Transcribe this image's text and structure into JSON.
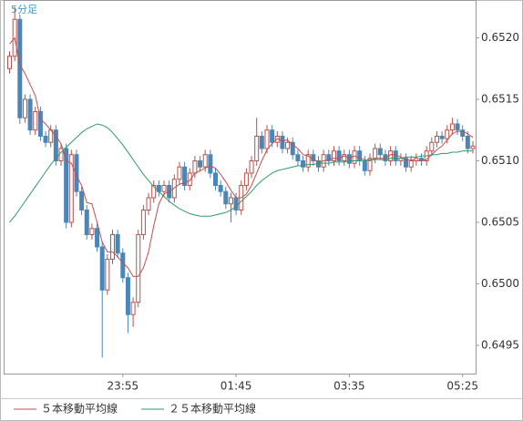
{
  "chart_data": {
    "type": "candlestick",
    "title": "5分足",
    "categories": [
      null,
      null,
      null,
      null,
      null,
      null,
      null,
      null,
      null,
      null,
      null,
      null,
      null,
      null,
      null,
      null,
      null,
      null,
      null,
      null,
      null,
      null,
      "23:55",
      null,
      null,
      null,
      null,
      null,
      null,
      null,
      null,
      null,
      null,
      null,
      null,
      null,
      null,
      null,
      null,
      null,
      null,
      null,
      null,
      null,
      "01:45",
      null,
      null,
      null,
      null,
      null,
      null,
      null,
      null,
      null,
      null,
      null,
      null,
      null,
      null,
      null,
      null,
      null,
      null,
      null,
      null,
      null,
      "03:35",
      null,
      null,
      null,
      null,
      null,
      null,
      null,
      null,
      null,
      null,
      null,
      null,
      null,
      null,
      null,
      null,
      null,
      null,
      null,
      null,
      null,
      "05:25",
      null,
      null
    ],
    "open": [
      0.65175,
      0.65185,
      0.65215,
      0.65135,
      0.6515,
      0.65125,
      0.6514,
      0.6512,
      0.65115,
      0.65125,
      0.651,
      0.6511,
      0.6505,
      0.65105,
      0.65075,
      0.6506,
      0.6504,
      0.65045,
      0.6503,
      0.64995,
      0.6502,
      0.6504,
      0.65025,
      0.65005,
      0.64975,
      0.64985,
      0.6504,
      0.6506,
      0.6507,
      0.6508,
      0.65075,
      0.6508,
      0.6507,
      0.65085,
      0.65095,
      0.6508,
      0.6509,
      0.651,
      0.65095,
      0.65105,
      0.6509,
      0.6508,
      0.65075,
      0.65065,
      0.6507,
      0.6506,
      0.6508,
      0.6509,
      0.651,
      0.6512,
      0.6511,
      0.65125,
      0.65115,
      0.6512,
      0.6511,
      0.65115,
      0.65105,
      0.651,
      0.65095,
      0.65105,
      0.651,
      0.65095,
      0.65105,
      0.651,
      0.65108,
      0.651,
      0.65105,
      0.65098,
      0.65108,
      0.651,
      0.65092,
      0.65102,
      0.6511,
      0.65105,
      0.651,
      0.65108,
      0.651,
      0.65102,
      0.65095,
      0.651,
      0.65102,
      0.651,
      0.65108,
      0.65115,
      0.6512,
      0.65118,
      0.65125,
      0.6513,
      0.65125,
      0.6512,
      0.6511
    ],
    "high": [
      0.65189,
      0.65225,
      0.65219,
      0.65154,
      0.65154,
      0.65144,
      0.65144,
      0.65124,
      0.65129,
      0.65129,
      0.65114,
      0.65114,
      0.65109,
      0.65109,
      0.65079,
      0.65064,
      0.65049,
      0.65049,
      0.65034,
      0.65024,
      0.65044,
      0.65044,
      0.65029,
      0.65009,
      0.64989,
      0.65044,
      0.65064,
      0.65074,
      0.65084,
      0.65084,
      0.65084,
      0.65084,
      0.65089,
      0.65099,
      0.65099,
      0.65094,
      0.65104,
      0.65104,
      0.65109,
      0.65109,
      0.65094,
      0.65084,
      0.65079,
      0.65074,
      0.65074,
      0.65084,
      0.65094,
      0.65104,
      0.65135,
      0.65124,
      0.65129,
      0.65129,
      0.65124,
      0.65124,
      0.65119,
      0.65119,
      0.65109,
      0.65104,
      0.65109,
      0.65109,
      0.65104,
      0.65109,
      0.65109,
      0.65112,
      0.65112,
      0.65109,
      0.65109,
      0.65112,
      0.65112,
      0.65104,
      0.65106,
      0.65114,
      0.65114,
      0.65109,
      0.65112,
      0.65112,
      0.65106,
      0.65106,
      0.65104,
      0.65106,
      0.65106,
      0.65112,
      0.65119,
      0.65124,
      0.65124,
      0.65129,
      0.65135,
      0.65134,
      0.65129,
      0.65124,
      0.65116
    ],
    "low": [
      0.65171,
      0.65181,
      0.6513,
      0.65131,
      0.65121,
      0.65121,
      0.65116,
      0.65111,
      0.65111,
      0.65096,
      0.65096,
      0.65045,
      0.65046,
      0.65071,
      0.65056,
      0.65036,
      0.65036,
      0.65026,
      0.6494,
      0.64991,
      0.65016,
      0.65021,
      0.65001,
      0.6496,
      0.64965,
      0.64981,
      0.65036,
      0.65056,
      0.65066,
      0.65071,
      0.65071,
      0.65066,
      0.65066,
      0.65081,
      0.65076,
      0.65076,
      0.65086,
      0.65091,
      0.65091,
      0.65086,
      0.65076,
      0.65071,
      0.65061,
      0.6505,
      0.65056,
      0.65056,
      0.65076,
      0.65086,
      0.65096,
      0.65106,
      0.65106,
      0.65111,
      0.65111,
      0.65106,
      0.65106,
      0.65101,
      0.65096,
      0.65091,
      0.65091,
      0.65096,
      0.65091,
      0.65091,
      0.65096,
      0.65096,
      0.65096,
      0.65096,
      0.65094,
      0.65094,
      0.65096,
      0.65088,
      0.65088,
      0.65098,
      0.65101,
      0.65096,
      0.65096,
      0.65096,
      0.65096,
      0.65091,
      0.65091,
      0.65096,
      0.65096,
      0.65096,
      0.65104,
      0.65111,
      0.65114,
      0.65114,
      0.65121,
      0.65121,
      0.65116,
      0.65106,
      0.65106
    ],
    "close": [
      0.65185,
      0.65215,
      0.65135,
      0.6515,
      0.65125,
      0.6514,
      0.6512,
      0.65115,
      0.65125,
      0.651,
      0.6511,
      0.6505,
      0.65105,
      0.65075,
      0.6506,
      0.6504,
      0.65045,
      0.6503,
      0.64995,
      0.6502,
      0.6504,
      0.65025,
      0.65005,
      0.64975,
      0.64985,
      0.6504,
      0.6506,
      0.6507,
      0.6508,
      0.65075,
      0.6508,
      0.6507,
      0.65085,
      0.65095,
      0.6508,
      0.6509,
      0.651,
      0.65095,
      0.65105,
      0.6509,
      0.6508,
      0.65075,
      0.65065,
      0.6507,
      0.6506,
      0.6508,
      0.6509,
      0.651,
      0.6512,
      0.6511,
      0.65125,
      0.65115,
      0.6512,
      0.6511,
      0.65115,
      0.65105,
      0.651,
      0.65095,
      0.65105,
      0.651,
      0.65095,
      0.65105,
      0.651,
      0.65108,
      0.651,
      0.65105,
      0.65098,
      0.65108,
      0.651,
      0.65092,
      0.65102,
      0.6511,
      0.65105,
      0.651,
      0.65108,
      0.651,
      0.65102,
      0.65095,
      0.651,
      0.65102,
      0.651,
      0.65108,
      0.65115,
      0.6512,
      0.65118,
      0.65125,
      0.6513,
      0.65125,
      0.6512,
      0.6511,
      0.65112
    ],
    "up_color": "#b5524d",
    "down_color": "#4a86b8",
    "series": [
      {
        "name": "５本移動平均線",
        "color": "#c0504d",
        "values": [
          0.65195,
          0.652,
          0.65178,
          0.65171,
          0.65162,
          0.65153,
          0.65134,
          0.6513,
          0.65125,
          0.6512,
          0.65114,
          0.651,
          0.65098,
          0.65088,
          0.6508,
          0.65066,
          0.65065,
          0.6505,
          0.65034,
          0.65026,
          0.65026,
          0.65022,
          0.65017,
          0.65013,
          0.65006,
          0.65006,
          0.65013,
          0.65026,
          0.65047,
          0.65065,
          0.65073,
          0.65075,
          0.65078,
          0.65081,
          0.65082,
          0.65084,
          0.6509,
          0.65092,
          0.65094,
          0.65096,
          0.65094,
          0.65089,
          0.65083,
          0.65076,
          0.6507,
          0.6507,
          0.65073,
          0.6508,
          0.6509,
          0.651,
          0.65109,
          0.65114,
          0.65118,
          0.65116,
          0.65117,
          0.65113,
          0.6511,
          0.65105,
          0.65104,
          0.65101,
          0.65099,
          0.651,
          0.65101,
          0.65102,
          0.65102,
          0.65104,
          0.65102,
          0.65104,
          0.65102,
          0.65101,
          0.651,
          0.65102,
          0.65102,
          0.65102,
          0.65105,
          0.65105,
          0.65103,
          0.65101,
          0.65101,
          0.651,
          0.651,
          0.65101,
          0.65105,
          0.65109,
          0.65112,
          0.65117,
          0.65122,
          0.65124,
          0.65124,
          0.65122,
          0.65119
        ]
      },
      {
        "name": "２５本移動平均線",
        "color": "#2e9a6a",
        "values": [
          0.6505,
          0.65055,
          0.65061,
          0.65067,
          0.65073,
          0.65079,
          0.65085,
          0.65091,
          0.65097,
          0.65102,
          0.65107,
          0.65111,
          0.65115,
          0.65119,
          0.65123,
          0.65126,
          0.65128,
          0.6513,
          0.65129,
          0.65127,
          0.65123,
          0.65118,
          0.65113,
          0.65107,
          0.65101,
          0.65095,
          0.65089,
          0.65084,
          0.65079,
          0.65075,
          0.65071,
          0.65067,
          0.65064,
          0.65061,
          0.65059,
          0.65057,
          0.65056,
          0.65055,
          0.65055,
          0.65055,
          0.65056,
          0.65057,
          0.65058,
          0.6506,
          0.65063,
          0.65067,
          0.65071,
          0.65075,
          0.6508,
          0.65084,
          0.65087,
          0.6509,
          0.65092,
          0.65093,
          0.65094,
          0.65095,
          0.65096,
          0.65096,
          0.65097,
          0.65097,
          0.65098,
          0.65098,
          0.65098,
          0.65099,
          0.65099,
          0.65099,
          0.651,
          0.651,
          0.651,
          0.651,
          0.65101,
          0.65101,
          0.65101,
          0.65101,
          0.65102,
          0.65102,
          0.65102,
          0.65103,
          0.65103,
          0.65103,
          0.65104,
          0.65104,
          0.65105,
          0.65105,
          0.65106,
          0.65106,
          0.65107,
          0.65107,
          0.65108,
          0.65108,
          0.65108
        ]
      }
    ],
    "ylim": [
      0.64927,
      0.6523
    ],
    "yticks": [
      {
        "value": 0.652,
        "label": "0.6520"
      },
      0.6515,
      {
        "value": 0.651,
        "label": "0.6510"
      },
      0.6505,
      {
        "value": 0.65,
        "label": "0.6500"
      },
      0.6495
    ]
  }
}
